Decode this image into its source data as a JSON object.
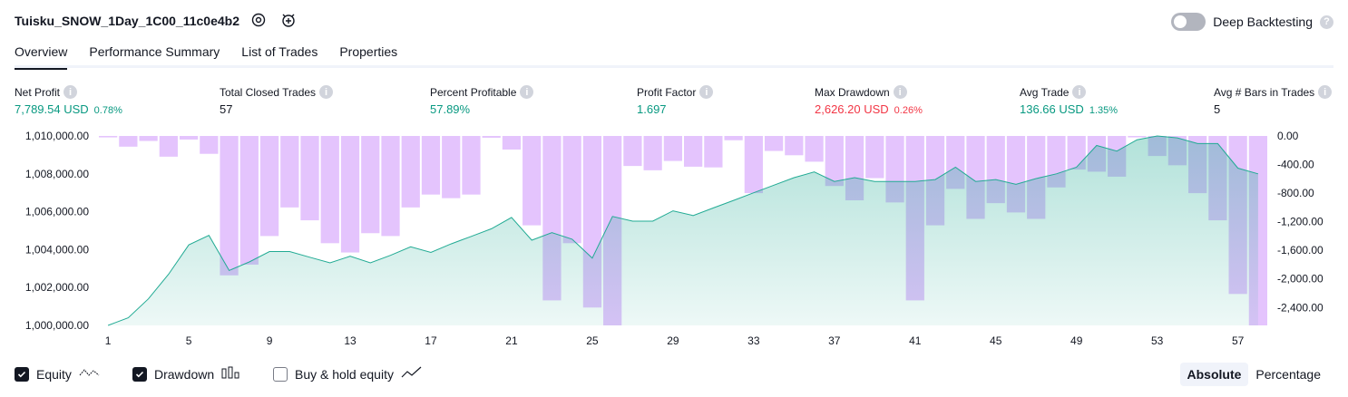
{
  "header": {
    "title": "Tuisku_SNOW_1Day_1C00_11c0e4b2",
    "deep_backtesting_label": "Deep Backtesting",
    "help_glyph": "?"
  },
  "tabs": [
    {
      "label": "Overview"
    },
    {
      "label": "Performance Summary"
    },
    {
      "label": "List of Trades"
    },
    {
      "label": "Properties"
    }
  ],
  "metrics": [
    {
      "label": "Net Profit",
      "value": "7,789.54 USD",
      "pct": "0.78%",
      "color": "green"
    },
    {
      "label": "Total Closed Trades",
      "value": "57",
      "pct": "",
      "color": "dark"
    },
    {
      "label": "Percent Profitable",
      "value": "57.89%",
      "pct": "",
      "color": "green"
    },
    {
      "label": "Profit Factor",
      "value": "1.697",
      "pct": "",
      "color": "green"
    },
    {
      "label": "Max Drawdown",
      "value": "2,626.20 USD",
      "pct": "0.26%",
      "color": "red"
    },
    {
      "label": "Avg Trade",
      "value": "136.66 USD",
      "pct": "1.35%",
      "color": "green"
    },
    {
      "label": "Avg # Bars in Trades",
      "value": "5",
      "pct": "",
      "color": "dark"
    }
  ],
  "legend": {
    "equity": "Equity",
    "drawdown": "Drawdown",
    "buy_hold": "Buy & hold equity"
  },
  "view_toggle": {
    "absolute": "Absolute",
    "percentage": "Percentage"
  },
  "colors": {
    "equity_line": "#22ab94",
    "drawdown_bar": "#ce93fb",
    "positive": "#089981",
    "negative": "#f23645"
  },
  "chart_data": {
    "type": "area",
    "x": [
      1,
      2,
      3,
      4,
      5,
      6,
      7,
      8,
      9,
      10,
      11,
      12,
      13,
      14,
      15,
      16,
      17,
      18,
      19,
      20,
      21,
      22,
      23,
      24,
      25,
      26,
      27,
      28,
      29,
      30,
      31,
      32,
      33,
      34,
      35,
      36,
      37,
      38,
      39,
      40,
      41,
      42,
      43,
      44,
      45,
      46,
      47,
      48,
      49,
      50,
      51,
      52,
      53,
      54,
      55,
      56,
      57,
      58
    ],
    "x_ticks": [
      "1",
      "5",
      "9",
      "13",
      "17",
      "21",
      "25",
      "29",
      "33",
      "37",
      "41",
      "45",
      "49",
      "53",
      "57"
    ],
    "x_tick_values": [
      1,
      5,
      9,
      13,
      17,
      21,
      25,
      29,
      33,
      37,
      41,
      45,
      49,
      53,
      57
    ],
    "left_axis": {
      "ticks": [
        "1,010,000.00",
        "1,008,000.00",
        "1,006,000.00",
        "1,004,000.00",
        "1,002,000.00",
        "1,000,000.00"
      ],
      "tick_values": [
        1010000,
        1008000,
        1006000,
        1004000,
        1002000,
        1000000
      ],
      "ylim": [
        1000000,
        1010000
      ]
    },
    "right_axis": {
      "ticks": [
        "0.00",
        "-400.00",
        "-800.00",
        "-1,200.00",
        "-1,600.00",
        "-2,000.00",
        "-2,400.00"
      ],
      "tick_values": [
        0,
        -400,
        -800,
        -1200,
        -1600,
        -2000,
        -2400
      ],
      "ylim": [
        -2650,
        0
      ]
    },
    "series": [
      {
        "name": "Equity",
        "values": [
          1000000,
          1000400,
          1001400,
          1002700,
          1004250,
          1004750,
          1002900,
          1003350,
          1003900,
          1003900,
          1003600,
          1003300,
          1003650,
          1003300,
          1003700,
          1004150,
          1003850,
          1004300,
          1004700,
          1005100,
          1005700,
          1004500,
          1004900,
          1004550,
          1003550,
          1005750,
          1005500,
          1005500,
          1006050,
          1005800,
          1006200,
          1006600,
          1007000,
          1007400,
          1007800,
          1008100,
          1007600,
          1007800,
          1007600,
          1007600,
          1007600,
          1007700,
          1008350,
          1007600,
          1007700,
          1007450,
          1007750,
          1008000,
          1008350,
          1009500,
          1009200,
          1009800,
          1010000,
          1009900,
          1009600,
          1009600,
          1008300,
          1008000
        ]
      },
      {
        "name": "Drawdown",
        "values": [
          -20,
          -150,
          -70,
          -290,
          -50,
          -250,
          -1950,
          -1800,
          -1400,
          -1000,
          -1180,
          -1500,
          -1630,
          -1360,
          -1400,
          -1000,
          -820,
          -870,
          -820,
          -25,
          -190,
          -1250,
          -2300,
          -1500,
          -2400,
          -2650,
          -420,
          -480,
          -350,
          -430,
          -440,
          -60,
          -800,
          -210,
          -270,
          -360,
          -700,
          -900,
          -590,
          -930,
          -2300,
          -1250,
          -740,
          -1160,
          -940,
          -1070,
          -1160,
          -720,
          -470,
          -500,
          -570,
          -20,
          -280,
          -410,
          -800,
          -1180,
          -2210,
          -2650
        ]
      }
    ]
  }
}
